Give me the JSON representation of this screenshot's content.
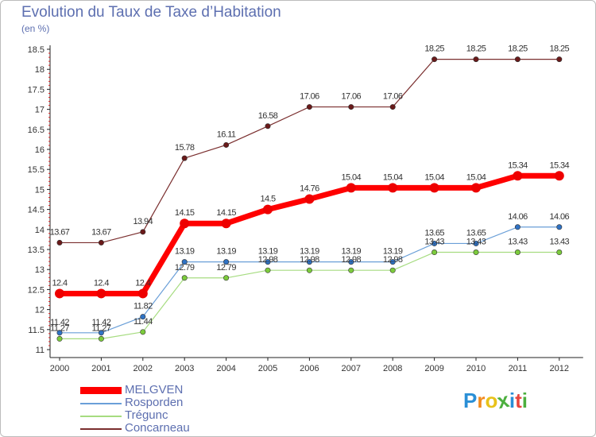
{
  "chart_data": {
    "type": "line",
    "title": "Evolution du Taux de Taxe d’Habitation",
    "unit_label": "(en %)",
    "categories": [
      "2000",
      "2001",
      "2002",
      "2003",
      "2004",
      "2005",
      "2006",
      "2007",
      "2008",
      "2009",
      "2010",
      "2011",
      "2012"
    ],
    "ylim": [
      11,
      18.5
    ],
    "y_ticks": [
      "11",
      "11.5",
      "12",
      "12.5",
      "13",
      "13.5",
      "14",
      "14.5",
      "15",
      "15.5",
      "16",
      "16.5",
      "17",
      "17.5",
      "18",
      "18.5"
    ],
    "grid": false,
    "legend_position": "bottom-left",
    "series": [
      {
        "name": "MELGVEN",
        "color": "#ff0000",
        "point_color": "#ee0000",
        "values": [
          12.4,
          12.4,
          12.4,
          14.15,
          14.15,
          14.5,
          14.76,
          15.04,
          15.04,
          15.04,
          15.04,
          15.34,
          15.34
        ],
        "labels": [
          "12.4",
          "12.4",
          "12.4",
          "14.15",
          "14.15",
          "14.5",
          "14.76",
          "15.04",
          "15.04",
          "15.04",
          "15.04",
          "15.34",
          "15.34"
        ]
      },
      {
        "name": "Rosporden",
        "color": "#6a9fd8",
        "point_color": "#2f72c4",
        "values": [
          11.42,
          11.42,
          11.82,
          13.19,
          13.19,
          13.19,
          13.19,
          13.19,
          13.19,
          13.65,
          13.65,
          14.06,
          14.06
        ],
        "labels": [
          "11.42",
          "11.42",
          "11.82",
          "13.19",
          "13.19",
          "13.19",
          "13.19",
          "13.19",
          "13.19",
          "13.65",
          "13.65",
          "14.06",
          "14.06"
        ]
      },
      {
        "name": "Trégunc",
        "color": "#a6dc80",
        "point_color": "#7ccb3c",
        "values": [
          11.27,
          11.27,
          11.44,
          12.79,
          12.79,
          12.98,
          12.98,
          12.98,
          12.98,
          13.43,
          13.43,
          13.43,
          13.43
        ],
        "labels": [
          "11.27",
          "11.27",
          "11.44",
          "12.79",
          "12.79",
          "12.98",
          "12.98",
          "12.98",
          "12.98",
          "13.43",
          "13.43",
          "13.43",
          "13.43"
        ]
      },
      {
        "name": "Concarneau",
        "color": "#7a2e2e",
        "point_color": "#6a1a1a",
        "values": [
          13.67,
          13.67,
          13.94,
          15.78,
          16.11,
          16.58,
          17.06,
          17.06,
          17.06,
          18.25,
          18.25,
          18.25,
          18.25
        ],
        "labels": [
          "13.67",
          "13.67",
          "13.94",
          "15.78",
          "16.11",
          "16.58",
          "17.06",
          "17.06",
          "17.06",
          "18.25",
          "18.25",
          "18.25",
          "18.25"
        ]
      }
    ]
  },
  "logo": {
    "text": "Proxiti",
    "letters": [
      "P",
      "r",
      "o",
      "x",
      "i",
      "t",
      "i"
    ],
    "colors": [
      "#2a8fd6",
      "#f28a1c",
      "#e8c21a",
      "#4caf3e",
      "#2a8fd6",
      "#e8453c",
      "#4caf3e"
    ]
  }
}
